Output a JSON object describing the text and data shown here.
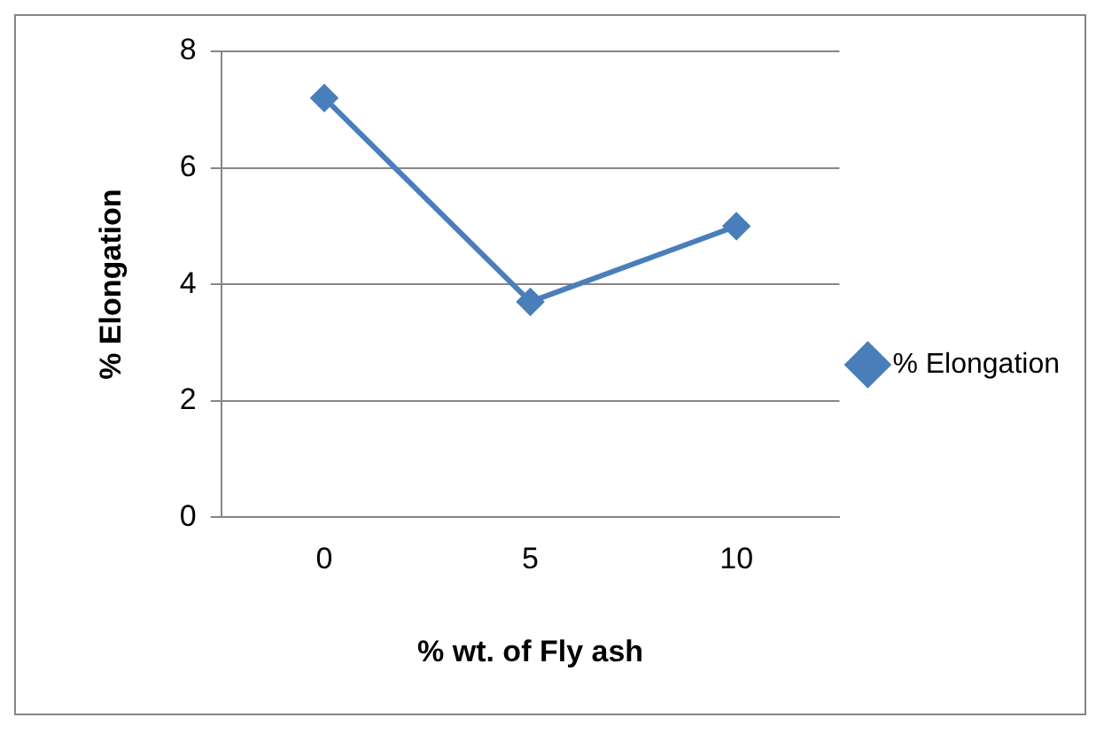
{
  "chart_data": {
    "type": "line",
    "xlabel": "% wt. of Fly ash",
    "ylabel": "% Elongation",
    "categories": [
      "0",
      "5",
      "10"
    ],
    "series": [
      {
        "name": "% Elongation",
        "color": "#4a7ebb",
        "values": [
          7.2,
          3.7,
          5.0
        ]
      }
    ],
    "ylim": [
      0,
      8
    ],
    "yticks": [
      0,
      2,
      4,
      6,
      8
    ],
    "grid": "y",
    "legend": "right",
    "marker": "diamond",
    "line_style": "solid"
  }
}
